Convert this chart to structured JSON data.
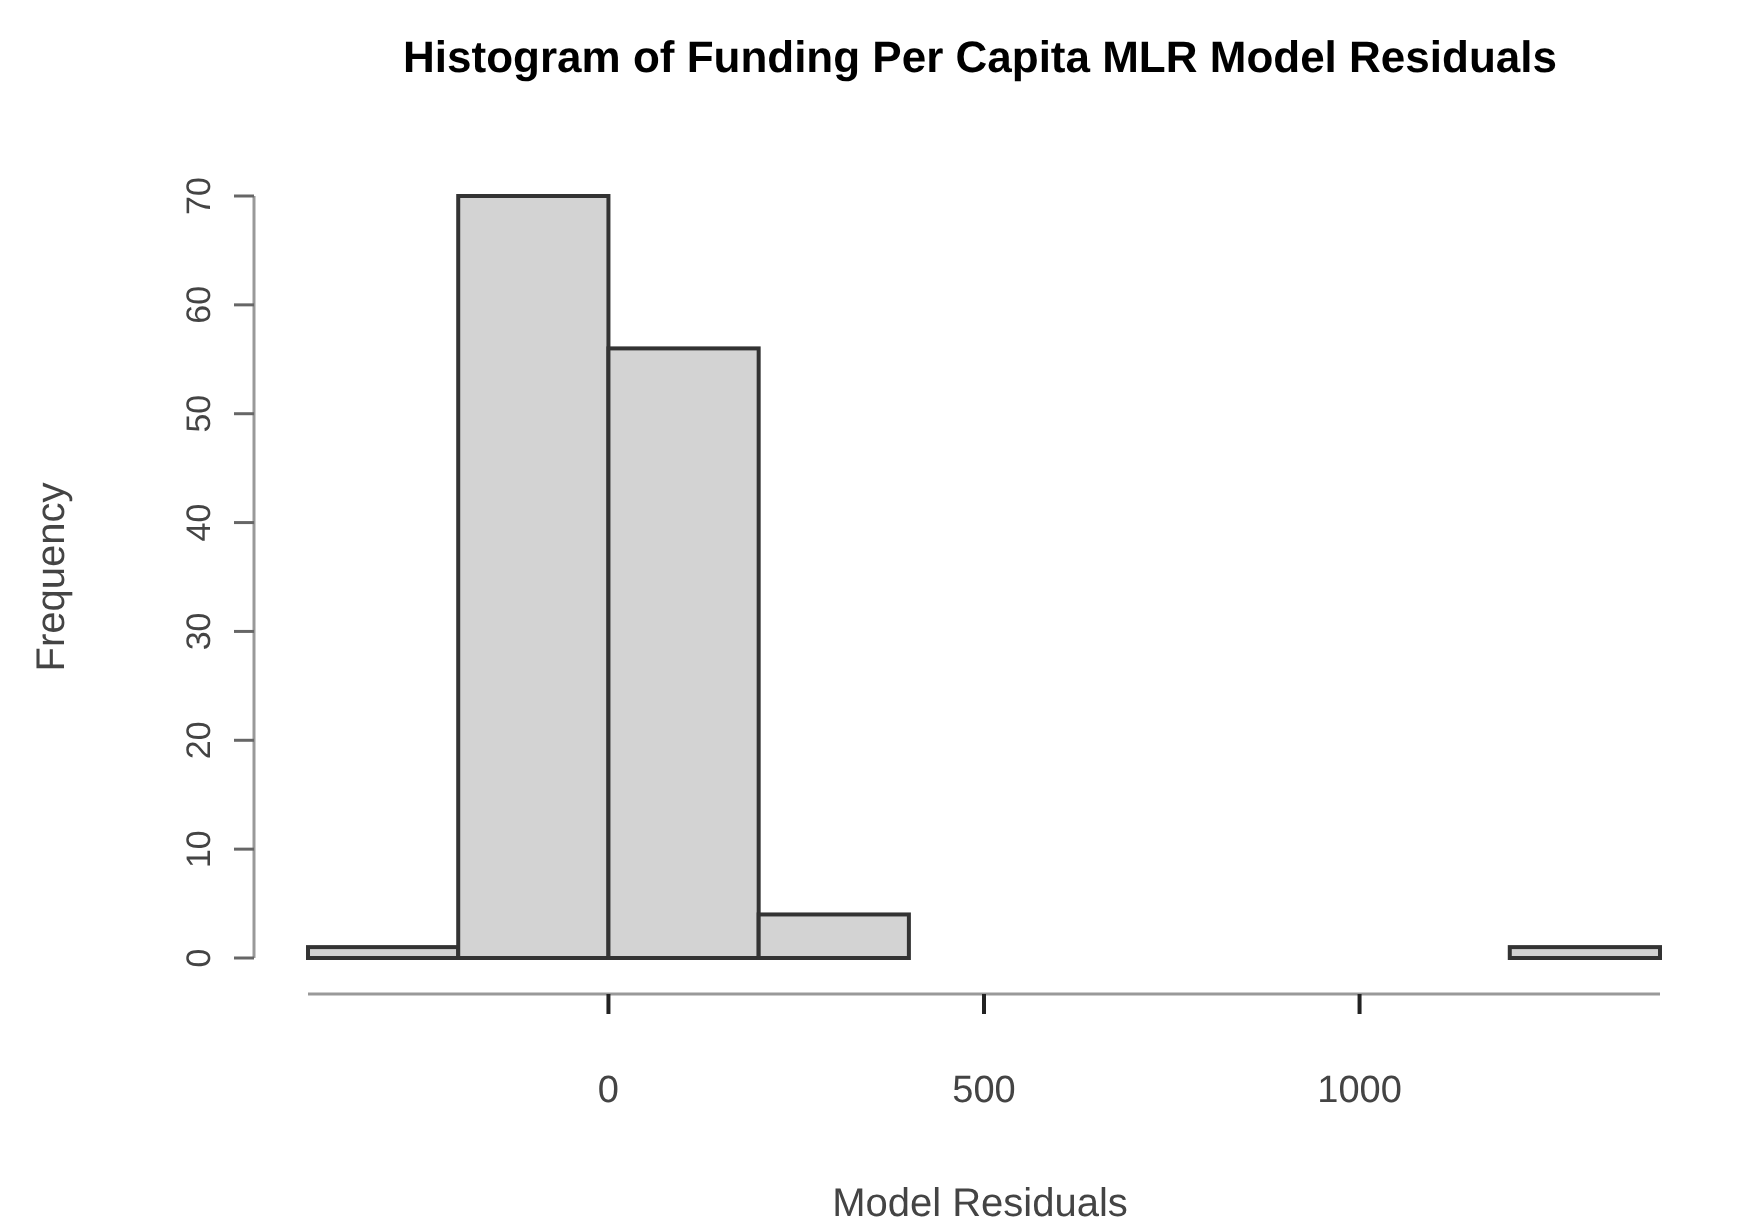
{
  "chart_data": {
    "type": "histogram",
    "title": "Histogram of Funding Per Capita MLR Model Residuals",
    "xlabel": "Model Residuals",
    "ylabel": "Frequency",
    "bins": [
      -400,
      -200,
      0,
      200,
      400,
      600,
      800,
      1000,
      1200,
      1400
    ],
    "values": [
      1,
      70,
      56,
      4,
      0,
      0,
      0,
      0,
      1
    ],
    "color": "#d3d3d3",
    "xlim": [
      -400,
      1400
    ],
    "xticks": [
      0,
      500,
      1000
    ],
    "ylim": [
      0,
      70
    ],
    "yticks": [
      0,
      10,
      20,
      30,
      40,
      50,
      60,
      70
    ],
    "grid": false
  }
}
